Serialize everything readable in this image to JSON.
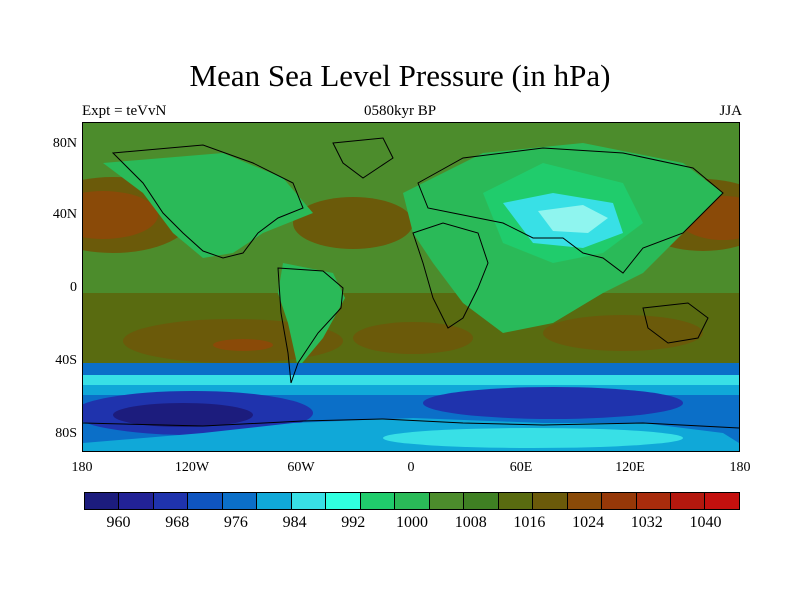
{
  "map": {
    "title": "Mean Sea Level Pressure (in hPa)",
    "left_label": "Expt = teVvN",
    "center_label": "0580kyr BP",
    "right_label": "JJA",
    "y_ticks": [
      "80N",
      "40N",
      "0",
      "40S",
      "80S"
    ],
    "x_ticks": [
      "180",
      "120W",
      "60W",
      "0",
      "60E",
      "120E",
      "180"
    ],
    "extent": {
      "lon": [
        -180,
        180
      ],
      "lat": [
        -90,
        90
      ]
    }
  },
  "colorbar": {
    "labels": [
      "960",
      "968",
      "976",
      "984",
      "992",
      "1000",
      "1008",
      "1016",
      "1024",
      "1032",
      "1040"
    ],
    "colors": [
      "#1c1c7d",
      "#222296",
      "#1f33ad",
      "#0f55c0",
      "#0b6fc8",
      "#10a8d8",
      "#38e0e6",
      "#30ffe0",
      "#20cc6c",
      "#2aba58",
      "#4c8c2c",
      "#3f8023",
      "#596b10",
      "#6b5a0a",
      "#8a4a08",
      "#963808",
      "#a82c0c",
      "#b4180e",
      "#c4100e"
    ]
  },
  "palette": {
    "ocean_mid": "#4c8c2c",
    "high": "#8a4a08",
    "highest": "#b4180e",
    "low_green": "#20cc6c",
    "light_green": "#2aba58",
    "cyan": "#38e0e6",
    "light_cyan": "#8ff5ef",
    "deep_blue": "#1c1c7d",
    "blue": "#1f33ad",
    "mid_blue": "#0b6fc8",
    "coast": "#000000"
  }
}
